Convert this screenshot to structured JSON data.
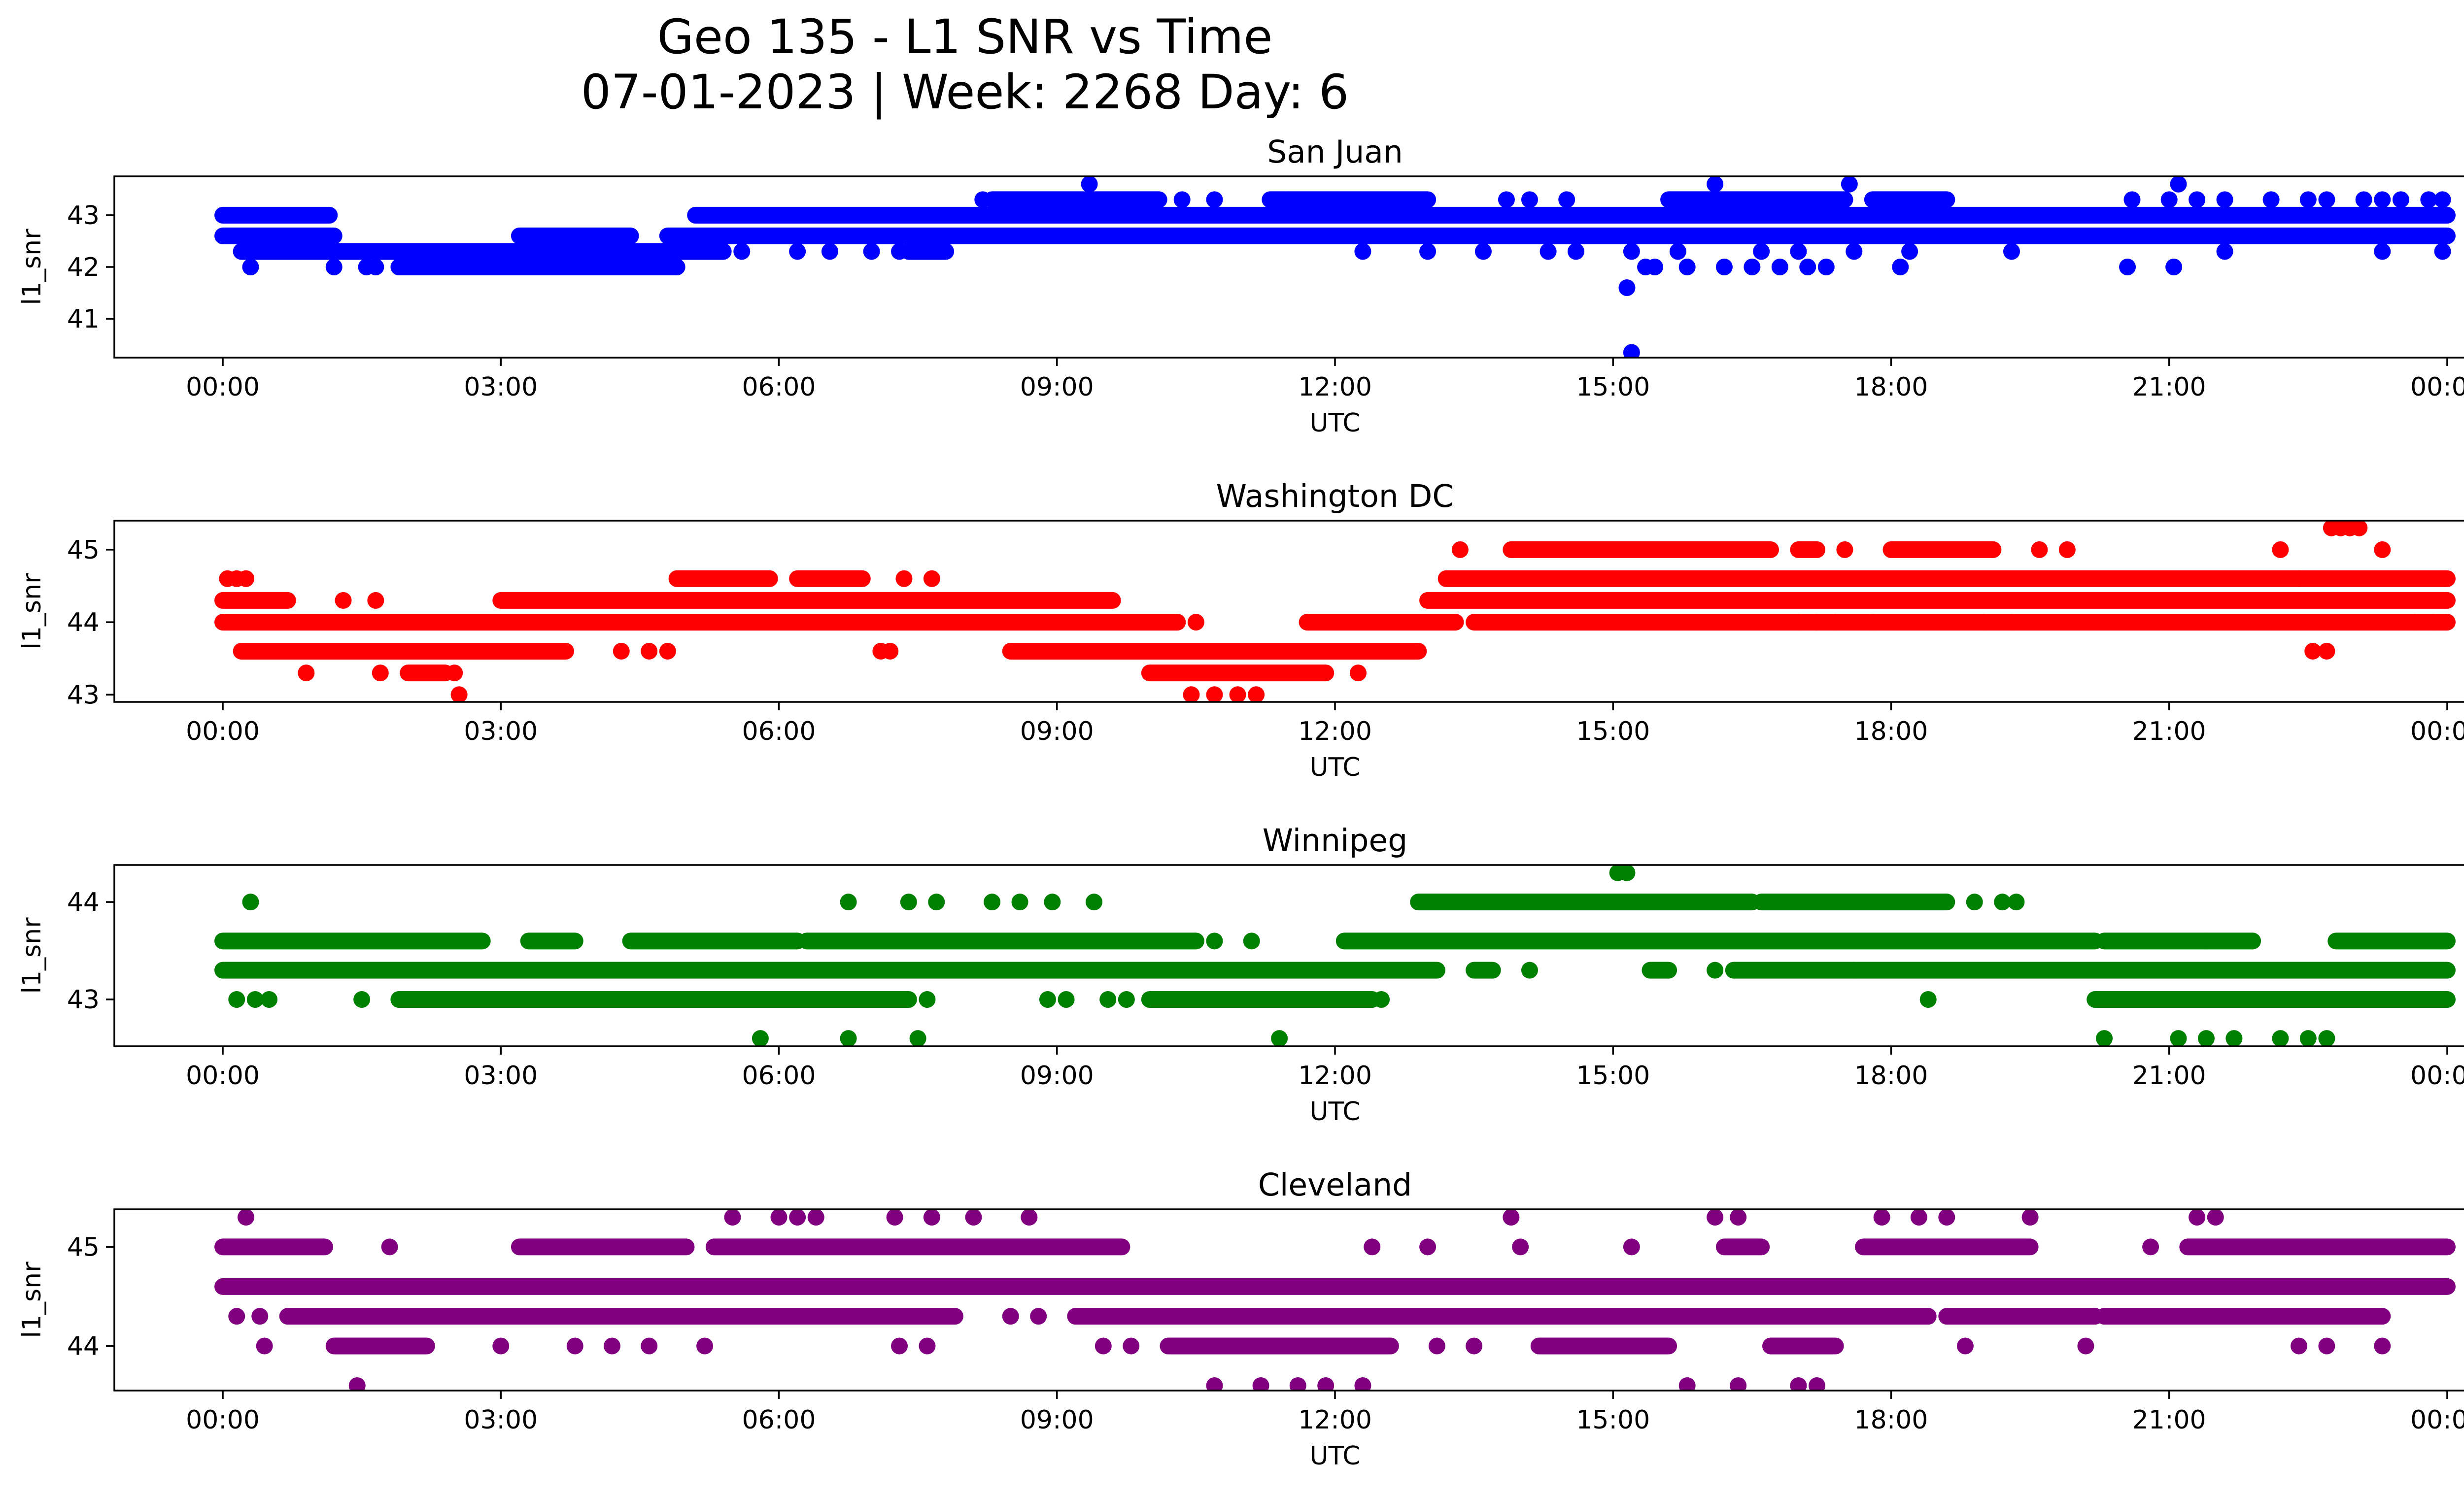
{
  "figure": {
    "title_line1": "Geo 135 - L1 SNR vs Time",
    "title_line2": "07-01-2023 | Week: 2268 Day: 6"
  },
  "chart_data": [
    {
      "type": "scatter",
      "title": "San Juan",
      "xlabel": "UTC",
      "ylabel": "l1_snr",
      "color": "#0000ff",
      "xlim_hours": [
        -1.17,
        25.17
      ],
      "ylim": [
        40.25,
        43.75
      ],
      "yticks": [
        41,
        42,
        43
      ],
      "xticks": [
        "00:00",
        "03:00",
        "06:00",
        "09:00",
        "12:00",
        "15:00",
        "18:00",
        "21:00",
        "00:00"
      ],
      "levels": [
        {
          "y": 43.0,
          "segments": [
            [
              0.0,
              1.15
            ],
            [
              5.1,
              24.0
            ]
          ]
        },
        {
          "y": 42.6,
          "segments": [
            [
              0.0,
              1.2
            ],
            [
              3.2,
              4.4
            ],
            [
              4.8,
              24.0
            ]
          ]
        },
        {
          "y": 42.3,
          "segments": [
            [
              0.2,
              5.4
            ],
            [
              7.4,
              7.8
            ]
          ]
        },
        {
          "y": 42.0,
          "segments": [
            [
              1.9,
              4.9
            ]
          ]
        },
        {
          "y": 43.3,
          "segments": [
            [
              8.3,
              10.1
            ],
            [
              11.3,
              13.0
            ],
            [
              15.6,
              17.5
            ],
            [
              17.8,
              18.6
            ]
          ]
        }
      ],
      "points": [
        [
          0.3,
          42.0
        ],
        [
          1.2,
          42.0
        ],
        [
          1.55,
          42.0
        ],
        [
          1.65,
          42.0
        ],
        [
          2.7,
          42.0
        ],
        [
          2.9,
          42.0
        ],
        [
          3.1,
          42.0
        ],
        [
          0.6,
          42.3
        ],
        [
          1.1,
          42.3
        ],
        [
          5.6,
          42.3
        ],
        [
          6.2,
          42.3
        ],
        [
          6.55,
          42.3
        ],
        [
          7.0,
          42.3
        ],
        [
          7.3,
          42.3
        ],
        [
          12.3,
          42.3
        ],
        [
          13.0,
          42.3
        ],
        [
          13.6,
          42.3
        ],
        [
          14.3,
          42.3
        ],
        [
          14.6,
          42.3
        ],
        [
          15.2,
          42.3
        ],
        [
          15.7,
          42.3
        ],
        [
          16.6,
          42.3
        ],
        [
          17.0,
          42.3
        ],
        [
          17.6,
          42.3
        ],
        [
          18.2,
          42.3
        ],
        [
          19.3,
          42.3
        ],
        [
          21.6,
          42.3
        ],
        [
          23.3,
          42.3
        ],
        [
          23.95,
          42.3
        ],
        [
          15.15,
          41.6
        ],
        [
          15.2,
          40.35
        ],
        [
          15.35,
          42.0
        ],
        [
          15.45,
          42.0
        ],
        [
          15.8,
          42.0
        ],
        [
          16.2,
          42.0
        ],
        [
          16.5,
          42.0
        ],
        [
          16.8,
          42.0
        ],
        [
          17.1,
          42.0
        ],
        [
          17.3,
          42.0
        ],
        [
          18.1,
          42.0
        ],
        [
          20.55,
          42.0
        ],
        [
          21.05,
          42.0
        ],
        [
          9.35,
          43.6
        ],
        [
          16.1,
          43.6
        ],
        [
          17.55,
          43.6
        ],
        [
          21.1,
          43.6
        ],
        [
          8.2,
          43.3
        ],
        [
          10.35,
          43.3
        ],
        [
          10.7,
          43.3
        ],
        [
          11.5,
          43.3
        ],
        [
          13.85,
          43.3
        ],
        [
          14.1,
          43.3
        ],
        [
          14.5,
          43.3
        ],
        [
          20.6,
          43.3
        ],
        [
          21.0,
          43.3
        ],
        [
          21.3,
          43.3
        ],
        [
          21.6,
          43.3
        ],
        [
          22.1,
          43.3
        ],
        [
          22.5,
          43.3
        ],
        [
          22.7,
          43.3
        ],
        [
          23.1,
          43.3
        ],
        [
          23.3,
          43.3
        ],
        [
          23.5,
          43.3
        ],
        [
          23.8,
          43.3
        ],
        [
          23.95,
          43.3
        ]
      ]
    },
    {
      "type": "scatter",
      "title": "Washington DC",
      "xlabel": "UTC",
      "ylabel": "l1_snr",
      "color": "#ff0000",
      "xlim_hours": [
        -1.17,
        25.17
      ],
      "ylim": [
        42.9,
        45.4
      ],
      "yticks": [
        43,
        44,
        45
      ],
      "xticks": [
        "00:00",
        "03:00",
        "06:00",
        "09:00",
        "12:00",
        "15:00",
        "18:00",
        "21:00",
        "00:00"
      ],
      "levels": [
        {
          "y": 44.0,
          "segments": [
            [
              0.0,
              10.3
            ],
            [
              11.7,
              13.3
            ],
            [
              13.5,
              24.0
            ]
          ]
        },
        {
          "y": 44.3,
          "segments": [
            [
              0.0,
              0.7
            ],
            [
              3.0,
              9.6
            ],
            [
              13.0,
              24.0
            ]
          ]
        },
        {
          "y": 43.6,
          "segments": [
            [
              0.2,
              3.7
            ],
            [
              8.5,
              12.9
            ]
          ]
        },
        {
          "y": 43.3,
          "segments": [
            [
              10.0,
              11.9
            ],
            [
              2.0,
              2.4
            ]
          ]
        },
        {
          "y": 44.6,
          "segments": [
            [
              13.2,
              24.0
            ],
            [
              4.9,
              5.9
            ],
            [
              6.2,
              6.9
            ]
          ]
        },
        {
          "y": 45.0,
          "segments": [
            [
              13.9,
              16.7
            ],
            [
              17.0,
              17.2
            ],
            [
              18.0,
              19.1
            ]
          ]
        }
      ],
      "points": [
        [
          0.05,
          44.6
        ],
        [
          0.15,
          44.6
        ],
        [
          0.25,
          44.6
        ],
        [
          0.9,
          43.3
        ],
        [
          1.7,
          43.3
        ],
        [
          2.5,
          43.3
        ],
        [
          2.55,
          43.0
        ],
        [
          1.3,
          44.3
        ],
        [
          1.65,
          44.3
        ],
        [
          4.3,
          43.6
        ],
        [
          4.6,
          43.6
        ],
        [
          4.8,
          43.6
        ],
        [
          7.2,
          43.6
        ],
        [
          7.1,
          43.6
        ],
        [
          7.35,
          44.6
        ],
        [
          7.65,
          44.6
        ],
        [
          10.5,
          44.0
        ],
        [
          10.45,
          43.0
        ],
        [
          10.7,
          43.0
        ],
        [
          10.95,
          43.0
        ],
        [
          11.15,
          43.0
        ],
        [
          12.25,
          43.3
        ],
        [
          13.35,
          45.0
        ],
        [
          17.5,
          45.0
        ],
        [
          19.6,
          45.0
        ],
        [
          19.9,
          45.0
        ],
        [
          22.2,
          45.0
        ],
        [
          23.3,
          45.0
        ],
        [
          17.0,
          44.0
        ],
        [
          17.2,
          44.0
        ],
        [
          17.4,
          44.0
        ],
        [
          17.8,
          44.0
        ],
        [
          19.0,
          44.0
        ],
        [
          19.3,
          44.0
        ],
        [
          22.55,
          43.6
        ],
        [
          22.7,
          43.6
        ],
        [
          22.4,
          44.6
        ],
        [
          23.65,
          44.0
        ],
        [
          23.85,
          44.0
        ],
        [
          22.75,
          45.3
        ],
        [
          22.85,
          45.3
        ],
        [
          22.95,
          45.3
        ],
        [
          23.05,
          45.3
        ]
      ]
    },
    {
      "type": "scatter",
      "title": "Winnipeg",
      "xlabel": "UTC",
      "ylabel": "l1_snr",
      "color": "#008000",
      "xlim_hours": [
        -1.17,
        25.17
      ],
      "ylim": [
        42.52,
        44.38
      ],
      "yticks": [
        43,
        44
      ],
      "xticks": [
        "00:00",
        "03:00",
        "06:00",
        "09:00",
        "12:00",
        "15:00",
        "18:00",
        "21:00",
        "00:00"
      ],
      "levels": [
        {
          "y": 43.3,
          "segments": [
            [
              0.0,
              13.1
            ],
            [
              13.5,
              13.7
            ],
            [
              15.4,
              15.6
            ],
            [
              16.3,
              24.0
            ]
          ]
        },
        {
          "y": 43.6,
          "segments": [
            [
              0.0,
              2.8
            ],
            [
              3.3,
              3.8
            ],
            [
              4.4,
              6.2
            ],
            [
              6.3,
              10.5
            ],
            [
              12.1,
              20.2
            ],
            [
              20.3,
              21.9
            ],
            [
              22.8,
              24.0
            ]
          ]
        },
        {
          "y": 43.0,
          "segments": [
            [
              1.9,
              7.4
            ],
            [
              10.0,
              12.4
            ],
            [
              20.2,
              24.0
            ]
          ]
        },
        {
          "y": 44.0,
          "segments": [
            [
              12.9,
              16.5
            ],
            [
              16.6,
              18.6
            ]
          ]
        }
      ],
      "points": [
        [
          0.3,
          44.0
        ],
        [
          6.75,
          44.0
        ],
        [
          7.4,
          44.0
        ],
        [
          7.7,
          44.0
        ],
        [
          8.3,
          44.0
        ],
        [
          8.6,
          44.0
        ],
        [
          8.95,
          44.0
        ],
        [
          9.4,
          44.0
        ],
        [
          0.15,
          43.0
        ],
        [
          0.35,
          43.0
        ],
        [
          0.5,
          43.0
        ],
        [
          1.5,
          43.0
        ],
        [
          7.6,
          43.0
        ],
        [
          8.9,
          43.0
        ],
        [
          9.1,
          43.0
        ],
        [
          9.55,
          43.0
        ],
        [
          9.75,
          43.0
        ],
        [
          12.5,
          43.0
        ],
        [
          18.4,
          43.0
        ],
        [
          5.8,
          42.6
        ],
        [
          6.75,
          42.6
        ],
        [
          7.5,
          42.6
        ],
        [
          11.4,
          42.6
        ],
        [
          20.3,
          42.6
        ],
        [
          21.1,
          42.6
        ],
        [
          21.4,
          42.6
        ],
        [
          21.7,
          42.6
        ],
        [
          22.2,
          42.6
        ],
        [
          22.5,
          42.6
        ],
        [
          22.7,
          42.6
        ],
        [
          15.05,
          44.3
        ],
        [
          15.15,
          44.3
        ],
        [
          18.9,
          44.0
        ],
        [
          19.2,
          44.0
        ],
        [
          19.35,
          44.0
        ],
        [
          10.7,
          43.6
        ],
        [
          11.1,
          43.6
        ],
        [
          21.4,
          43.6
        ],
        [
          21.9,
          43.6
        ],
        [
          14.1,
          43.3
        ],
        [
          16.1,
          43.3
        ],
        [
          17.6,
          43.3
        ]
      ]
    },
    {
      "type": "scatter",
      "title": "Cleveland",
      "xlabel": "UTC",
      "ylabel": "l1_snr",
      "color": "#800080",
      "xlim_hours": [
        -1.17,
        25.17
      ],
      "ylim": [
        43.55,
        45.38
      ],
      "yticks": [
        44,
        45
      ],
      "xticks": [
        "00:00",
        "03:00",
        "06:00",
        "09:00",
        "12:00",
        "15:00",
        "18:00",
        "21:00",
        "00:00"
      ],
      "levels": [
        {
          "y": 44.6,
          "segments": [
            [
              0.0,
              24.0
            ]
          ]
        },
        {
          "y": 44.3,
          "segments": [
            [
              0.7,
              7.9
            ],
            [
              9.2,
              18.4
            ],
            [
              18.6,
              20.2
            ],
            [
              20.3,
              23.3
            ]
          ]
        },
        {
          "y": 45.0,
          "segments": [
            [
              0.0,
              1.1
            ],
            [
              3.2,
              5.0
            ],
            [
              5.3,
              9.7
            ],
            [
              16.2,
              16.6
            ],
            [
              17.7,
              19.5
            ],
            [
              21.2,
              24.0
            ]
          ]
        },
        {
          "y": 44.0,
          "segments": [
            [
              1.2,
              2.2
            ],
            [
              10.2,
              12.6
            ],
            [
              14.2,
              15.6
            ],
            [
              16.7,
              17.4
            ]
          ]
        }
      ],
      "points": [
        [
          0.25,
          45.3
        ],
        [
          5.5,
          45.3
        ],
        [
          6.0,
          45.3
        ],
        [
          6.2,
          45.3
        ],
        [
          6.4,
          45.3
        ],
        [
          7.25,
          45.3
        ],
        [
          7.65,
          45.3
        ],
        [
          8.1,
          45.3
        ],
        [
          8.7,
          45.3
        ],
        [
          13.9,
          45.3
        ],
        [
          16.1,
          45.3
        ],
        [
          16.35,
          45.3
        ],
        [
          17.9,
          45.3
        ],
        [
          18.3,
          45.3
        ],
        [
          18.6,
          45.3
        ],
        [
          19.5,
          45.3
        ],
        [
          21.3,
          45.3
        ],
        [
          21.5,
          45.3
        ],
        [
          0.15,
          44.3
        ],
        [
          0.4,
          44.3
        ],
        [
          8.5,
          44.3
        ],
        [
          8.8,
          44.3
        ],
        [
          0.45,
          44.0
        ],
        [
          3.0,
          44.0
        ],
        [
          3.8,
          44.0
        ],
        [
          4.2,
          44.0
        ],
        [
          4.6,
          44.0
        ],
        [
          5.2,
          44.0
        ],
        [
          7.3,
          44.0
        ],
        [
          7.6,
          44.0
        ],
        [
          9.5,
          44.0
        ],
        [
          9.8,
          44.0
        ],
        [
          13.1,
          44.0
        ],
        [
          13.5,
          44.0
        ],
        [
          18.8,
          44.0
        ],
        [
          20.1,
          44.0
        ],
        [
          22.4,
          44.0
        ],
        [
          22.7,
          44.0
        ],
        [
          23.3,
          44.0
        ],
        [
          1.45,
          43.6
        ],
        [
          10.7,
          43.6
        ],
        [
          11.2,
          43.6
        ],
        [
          11.6,
          43.6
        ],
        [
          11.9,
          43.6
        ],
        [
          12.3,
          43.6
        ],
        [
          15.8,
          43.6
        ],
        [
          16.35,
          43.6
        ],
        [
          17.0,
          43.6
        ],
        [
          17.2,
          43.6
        ],
        [
          1.8,
          45.0
        ],
        [
          12.4,
          45.0
        ],
        [
          13.0,
          45.0
        ],
        [
          14.0,
          45.0
        ],
        [
          15.2,
          45.0
        ],
        [
          20.8,
          45.0
        ]
      ]
    }
  ]
}
